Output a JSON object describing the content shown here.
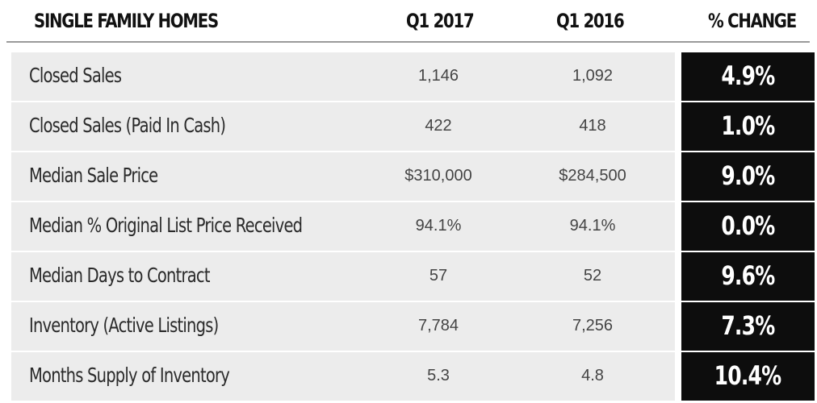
{
  "chart_data": {
    "type": "table",
    "columns": [
      "SINGLE FAMILY HOMES",
      "Q1 2017",
      "Q1 2016",
      "% CHANGE"
    ],
    "rows": [
      {
        "label": "Closed Sales",
        "q1_2017": "1,146",
        "q1_2016": "1,092",
        "change": "4.9%"
      },
      {
        "label": "Closed Sales (Paid In Cash)",
        "q1_2017": "422",
        "q1_2016": "418",
        "change": "1.0%"
      },
      {
        "label": "Median Sale Price",
        "q1_2017": "$310,000",
        "q1_2016": "$284,500",
        "change": "9.0%"
      },
      {
        "label": "Median % Original List Price Received",
        "q1_2017": "94.1%",
        "q1_2016": "94.1%",
        "change": "0.0%"
      },
      {
        "label": "Median Days to Contract",
        "q1_2017": "57",
        "q1_2016": "52",
        "change": "9.6%"
      },
      {
        "label": "Inventory (Active Listings)",
        "q1_2017": "7,784",
        "q1_2016": "7,256",
        "change": "7.3%"
      },
      {
        "label": "Months Supply of Inventory",
        "q1_2017": "5.3",
        "q1_2016": "4.8",
        "change": "10.4%"
      }
    ]
  },
  "colors": {
    "row_background": "#ececec",
    "change_box": "#0d0d0d",
    "change_text": "#ffffff",
    "header_rule": "#9a9a9a"
  }
}
